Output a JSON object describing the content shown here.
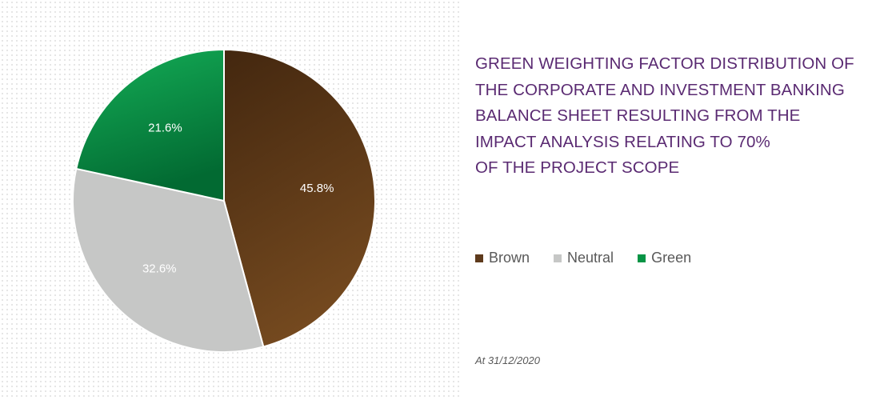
{
  "chart_data": {
    "type": "pie",
    "title_lines": [
      "GREEN WEIGHTING FACTOR DISTRIBUTION OF",
      "THE CORPORATE AND INVESTMENT BANKING",
      "BALANCE SHEET RESULTING FROM THE",
      "IMPACT ANALYSIS RELATING TO 70%",
      "OF THE PROJECT SCOPE"
    ],
    "slices": [
      {
        "name": "Brown",
        "value": 45.8,
        "label": "45.8%",
        "color": "#5e3a1c",
        "gradient": [
          "#43270f",
          "#74491f"
        ]
      },
      {
        "name": "Neutral",
        "value": 32.6,
        "label": "32.6%",
        "color": "#c6c7c6",
        "gradient": [
          "#c6c7c6",
          "#c6c7c6"
        ]
      },
      {
        "name": "Green",
        "value": 21.6,
        "label": "21.6%",
        "color": "#069445",
        "gradient": [
          "#14ae57",
          "#026a32"
        ]
      }
    ],
    "start_angle_deg": 0,
    "direction": "clockwise",
    "legend": {
      "position": "right-middle",
      "items": [
        "Brown",
        "Neutral",
        "Green"
      ]
    },
    "footnote": "At 31/12/2020"
  }
}
